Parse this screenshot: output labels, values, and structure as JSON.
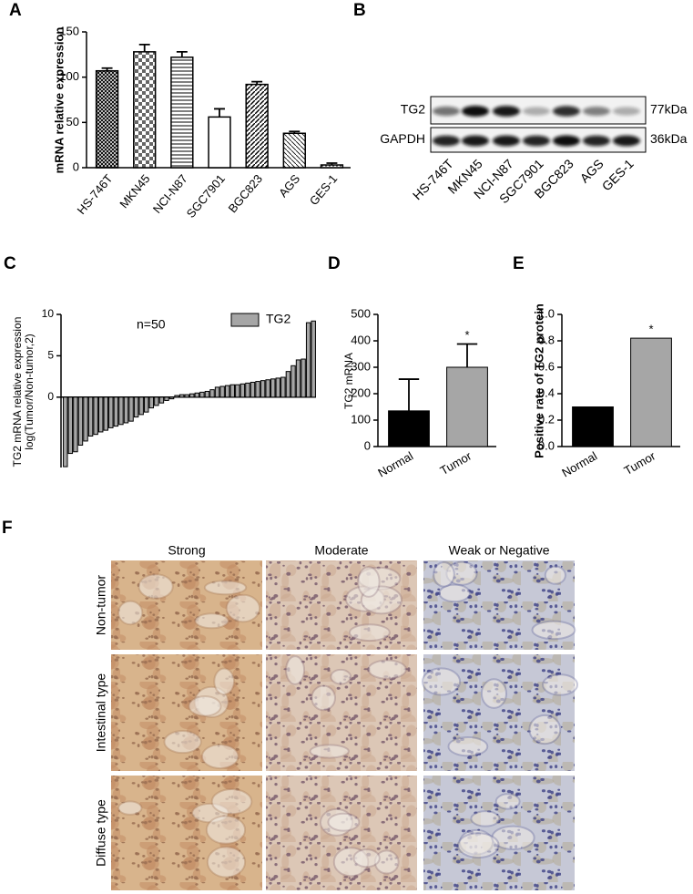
{
  "chart_data": [
    {
      "panel": "A",
      "type": "bar",
      "y_label": "mRNA relative expression",
      "categories": [
        "HS-746T",
        "MKN45",
        "NCI-N87",
        "SGC7901",
        "BGC823",
        "AGS",
        "GES-1"
      ],
      "values": [
        107,
        128,
        122,
        56,
        92,
        38,
        3
      ],
      "errors": [
        3,
        8,
        6,
        9,
        3,
        2,
        2
      ],
      "ylim": [
        0,
        150
      ],
      "yticks": [
        0,
        50,
        100,
        150
      ]
    },
    {
      "panel": "C",
      "type": "bar",
      "annotation": "n=50",
      "y_label": [
        "TG2 mRNA relative expression",
        "log(Tumor/Non-tumor,2)"
      ],
      "series": [
        {
          "name": "TG2",
          "color": "#a6a6a6",
          "values": [
            -8.4,
            -6.8,
            -6.6,
            -5.8,
            -5.3,
            -4.7,
            -4.5,
            -4.2,
            -4.0,
            -3.7,
            -3.5,
            -3.3,
            -3.1,
            -2.9,
            -2.4,
            -2.1,
            -1.8,
            -1.3,
            -1.0,
            -0.7,
            -0.4,
            -0.2,
            0.2,
            0.3,
            0.3,
            0.4,
            0.5,
            0.6,
            0.7,
            0.9,
            1.2,
            1.3,
            1.4,
            1.5,
            1.5,
            1.6,
            1.7,
            1.8,
            1.9,
            2.0,
            2.1,
            2.2,
            2.3,
            2.4,
            3.1,
            3.8,
            4.5,
            4.6,
            9.0,
            9.2
          ]
        }
      ],
      "ylim": [
        -8.5,
        10
      ],
      "yticks": [
        0,
        5,
        10
      ],
      "legend": "top-right"
    },
    {
      "panel": "D",
      "type": "bar",
      "y_label": "TG2 mRNA",
      "annotation": "*",
      "categories": [
        "Normal",
        "Tumor"
      ],
      "values": [
        135,
        300
      ],
      "errors": [
        120,
        88
      ],
      "colors": [
        "#000000",
        "#a6a6a6"
      ],
      "ylim": [
        0,
        500
      ],
      "yticks": [
        0,
        100,
        200,
        300,
        400,
        500
      ]
    },
    {
      "panel": "E",
      "type": "bar",
      "y_label": "Positive rate of TG2 protein",
      "annotation": "*",
      "categories": [
        "Normal",
        "Tumor"
      ],
      "values": [
        0.3,
        0.82
      ],
      "colors": [
        "#000000",
        "#a6a6a6"
      ],
      "ylim": [
        0,
        1
      ],
      "yticks": [
        {
          "value": 0,
          "label": "0.0"
        },
        0.2,
        0.4,
        0.6,
        0.8,
        {
          "value": 1,
          "label": "1.0"
        }
      ]
    }
  ],
  "western_blot": {
    "panel": "B",
    "rows": [
      {
        "label": "TG2",
        "size": "77kDa"
      },
      {
        "label": "GAPDH",
        "size": "36kDa"
      }
    ],
    "lanes": [
      "HS-746T",
      "MKN45",
      "NCI-N87",
      "SGC7901",
      "BGC823",
      "AGS",
      "GES-1"
    ]
  },
  "ihc": {
    "panel": "F",
    "columns": [
      "Strong",
      "Moderate",
      "Weak or Negative"
    ],
    "rows": [
      "Non-tumor",
      "Intestinal type",
      "Diffuse type"
    ]
  }
}
